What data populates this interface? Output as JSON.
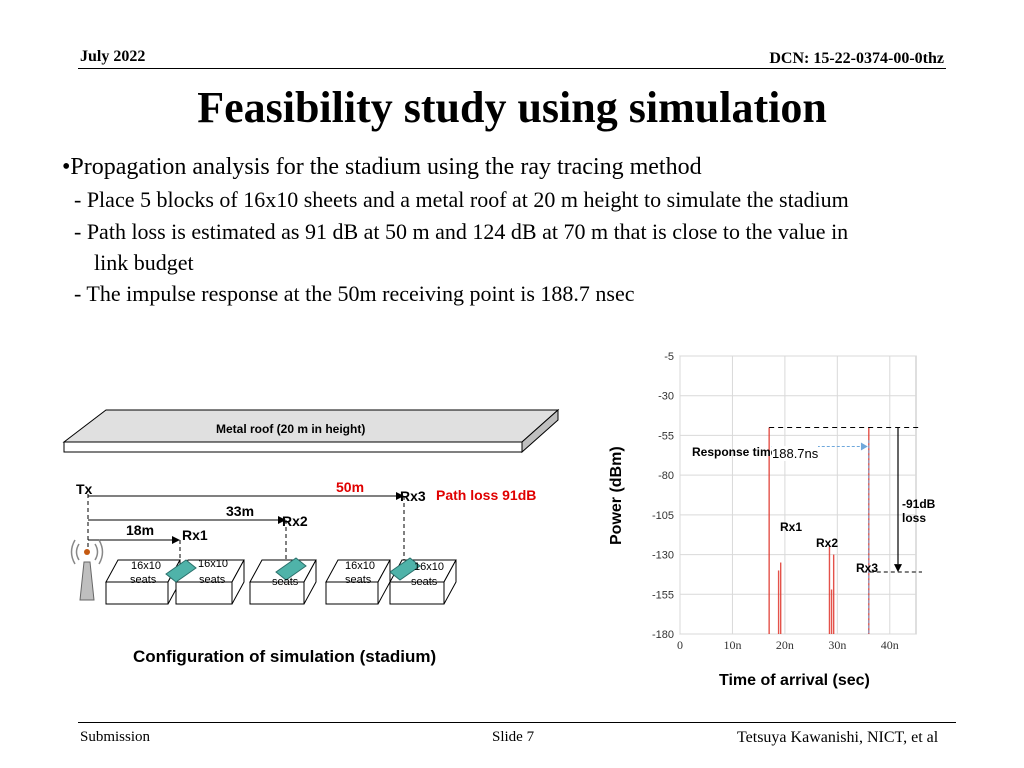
{
  "header": {
    "date": "July 2022",
    "dcn": "DCN: 15-22-0374-00-0thz"
  },
  "title": "Feasibility study using simulation",
  "bullets": {
    "main": "•Propagation analysis for the stadium using the ray tracing method",
    "sub1": "- Place 5 blocks of 16x10 sheets and a metal roof at 20 m height to simulate the stadium",
    "sub2a": "- Path loss is estimated as 91 dB at 50 m and 124 dB at 70 m that is close to the value in",
    "sub2b": "link budget",
    "sub3": "- The impulse response at the 50m receiving point is 188.7 nsec"
  },
  "diagram": {
    "roof_label": "Metal roof (20 m in height)",
    "tx": "Tx",
    "d50": "50m",
    "d33": "33m",
    "d18": "18m",
    "rx1": "Rx1",
    "rx2": "Rx2",
    "rx3": "Rx3",
    "path_loss": "Path loss 91dB",
    "block_top": "16x10",
    "block_bottom": "seats",
    "caption": "Configuration of simulation (stadium)"
  },
  "chart_data": {
    "type": "line",
    "ylabel": "Power (dBm)",
    "xlabel": "Time of arrival (sec)",
    "y_ticks": [
      "-5",
      "-30",
      "-55",
      "-80",
      "-105",
      "-130",
      "-155",
      "-180"
    ],
    "x_ticks": [
      "0",
      "10n",
      "20n",
      "30n",
      "40n"
    ],
    "ylim": [
      -180,
      -5
    ],
    "xlim": [
      0,
      45
    ],
    "grid": true,
    "series": [
      {
        "name": "Rx1",
        "x": [
          17.0,
          18.8,
          19.2
        ],
        "y": [
          -50,
          -140,
          -135
        ]
      },
      {
        "name": "Rx2",
        "x": [
          28.5,
          28.9,
          29.3
        ],
        "y": [
          -125,
          -152,
          -130
        ]
      },
      {
        "name": "Rx3",
        "x": [
          36.0
        ],
        "y": [
          -50
        ]
      }
    ],
    "annotations": {
      "response_time_label": "Response time",
      "response_time_value": "188.7ns",
      "loss_label": "-91dB loss",
      "rx1": "Rx1",
      "rx2": "Rx2",
      "rx3": "Rx3"
    }
  },
  "footer": {
    "left": "Submission",
    "center": "Slide 7",
    "right": "Tetsuya Kawanishi, NICT, et al"
  }
}
